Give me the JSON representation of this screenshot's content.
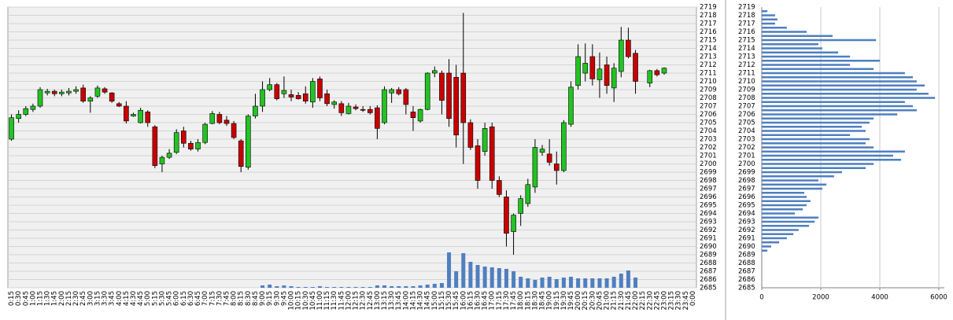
{
  "chart_data": [
    {
      "type": "candlestick",
      "categories": [
        "0:15",
        "0:30",
        "0:45",
        "1:00",
        "1:15",
        "1:30",
        "1:45",
        "2:00",
        "2:15",
        "2:30",
        "2:45",
        "3:00",
        "3:15",
        "3:30",
        "3:45",
        "4:00",
        "4:15",
        "4:30",
        "4:45",
        "5:00",
        "5:15",
        "5:30",
        "5:45",
        "6:00",
        "6:15",
        "6:30",
        "6:45",
        "7:00",
        "7:15",
        "7:30",
        "7:45",
        "8:00",
        "8:15",
        "8:30",
        "8:45",
        "9:00",
        "9:15",
        "9:30",
        "9:45",
        "10:00",
        "10:15",
        "10:30",
        "10:45",
        "11:00",
        "11:15",
        "11:30",
        "11:45",
        "12:00",
        "12:15",
        "12:30",
        "12:45",
        "13:00",
        "13:15",
        "13:30",
        "13:45",
        "14:00",
        "14:15",
        "14:30",
        "14:45",
        "15:00",
        "15:15",
        "15:30",
        "15:45",
        "16:00",
        "16:15",
        "16:30",
        "16:45",
        "17:00",
        "17:15",
        "17:30",
        "17:45",
        "18:00",
        "18:15",
        "18:30",
        "18:45",
        "19:00",
        "19:15",
        "19:30",
        "19:45",
        "20:00",
        "20:15",
        "20:30",
        "20:45",
        "21:00",
        "21:15",
        "21:30",
        "21:45",
        "22:00",
        "22:15",
        "22:30",
        "22:45",
        "23:00",
        "23:15",
        "23:30",
        "23:45",
        "0:00"
      ],
      "open": [
        2703,
        2705.5,
        2706,
        2706.6,
        2707,
        2708.6,
        2708.8,
        2708.5,
        2708.6,
        2708.8,
        2709.2,
        2707.6,
        2708.2,
        2709.1,
        2708.6,
        2707.3,
        2707,
        2705.8,
        2705,
        2706.3,
        2704.5,
        2700,
        2700.8,
        2701.4,
        2704,
        2702.5,
        2701.8,
        2702.6,
        2704.9,
        2706,
        2705.3,
        2704.9,
        2702.8,
        2699.6,
        2705.8,
        2707,
        2709,
        2709.6,
        2708.5,
        2708.4,
        2708.3,
        2708.5,
        2707.5,
        2710.3,
        2708.5,
        2707.2,
        2707.3,
        2706.1,
        2706.9,
        2706.6,
        2706.6,
        2706.8,
        2705,
        2708.6,
        2709,
        2709,
        2706.3,
        2705.2,
        2706.6,
        2711,
        2711,
        2711,
        2710.5,
        2711,
        2705,
        2702.2,
        2701.5,
        2704.5,
        2698,
        2696,
        2691.8,
        2694,
        2695.2,
        2697.2,
        2701.4,
        2701.2,
        2700,
        2699.2,
        2704.8,
        2709.5,
        2711,
        2713,
        2710.2,
        2712,
        2709.2,
        2711.2,
        2715,
        2713.4,
        null,
        2709.8,
        2711.3,
        2711,
        null,
        null,
        null,
        null
      ],
      "high": [
        2706,
        2706.5,
        2707,
        2707.3,
        2709.3,
        2709.1,
        2709,
        2709,
        2709.2,
        2709.4,
        2709.6,
        2708.2,
        2709.5,
        2709.3,
        2708.7,
        2707.5,
        2707.6,
        2706.2,
        2706.8,
        2706.5,
        2704.7,
        2701,
        2701.8,
        2704.2,
        2704.5,
        2702.8,
        2703,
        2705,
        2706.4,
        2706.3,
        2705.8,
        2705.2,
        2703,
        2706,
        2708.5,
        2710,
        2710.4,
        2709.8,
        2710.6,
        2709,
        2708.7,
        2709.4,
        2710.4,
        2710.6,
        2709,
        2707.7,
        2707.6,
        2707.4,
        2707.2,
        2707,
        2707,
        2707.1,
        2709.4,
        2709.2,
        2709.3,
        2709.2,
        2707,
        2706.7,
        2711.1,
        2711.8,
        2711.3,
        2712.7,
        2712,
        2718.3,
        2705.4,
        2703,
        2705,
        2705,
        2698.5,
        2696.8,
        2694,
        2696.2,
        2698.2,
        2703,
        2702.3,
        2703,
        2701.5,
        2705.3,
        2710,
        2714.5,
        2714.6,
        2714.5,
        2713.5,
        2713,
        2712.2,
        2716.6,
        2716.5,
        2713.8,
        null,
        2711.4,
        2711.5,
        2711.7,
        null,
        null,
        null,
        null
      ],
      "low": [
        2702.8,
        2705,
        2705.8,
        2706.3,
        2706.8,
        2708.3,
        2708.2,
        2708.2,
        2708.3,
        2708.5,
        2707.4,
        2706.2,
        2708,
        2708.5,
        2707.4,
        2706.9,
        2704.9,
        2705.7,
        2704.9,
        2704.5,
        2699.5,
        2699,
        2700.6,
        2701.2,
        2702,
        2701.6,
        2701.5,
        2702.4,
        2704.8,
        2704.8,
        2704.6,
        2703,
        2699,
        2699.3,
        2705.5,
        2706.3,
        2708.8,
        2707.7,
        2708,
        2707.6,
        2707.8,
        2707.3,
        2706.8,
        2707.6,
        2707,
        2706.7,
        2705.8,
        2706,
        2706.5,
        2706.3,
        2706,
        2703,
        2704.8,
        2707.4,
        2708.3,
        2706,
        2704,
        2705,
        2706.5,
        2710.5,
        2706,
        2704.5,
        2702,
        2700,
        2701.7,
        2697,
        2701,
        2697,
        2696,
        2690,
        2689,
        2692.5,
        2694.8,
        2696.5,
        2701,
        2699.8,
        2697.5,
        2699,
        2704.5,
        2709,
        2710,
        2709.5,
        2708,
        2708.5,
        2707.5,
        2710.5,
        2712.8,
        2708.5,
        null,
        2709.3,
        2710.6,
        2710.8,
        null,
        null,
        null,
        null
      ],
      "close": [
        2705.6,
        2706,
        2706.7,
        2707,
        2709,
        2708.8,
        2708.5,
        2708.7,
        2708.8,
        2709,
        2707.6,
        2708,
        2709.2,
        2708.7,
        2707.6,
        2707,
        2705.2,
        2706,
        2706.5,
        2705,
        2699.8,
        2700.8,
        2701.3,
        2703.8,
        2702.5,
        2701.8,
        2702.6,
        2704.8,
        2706.1,
        2705,
        2704.9,
        2703.2,
        2699.7,
        2705.8,
        2707,
        2709,
        2709.6,
        2707.9,
        2708.9,
        2708.1,
        2707.9,
        2707.6,
        2710,
        2708,
        2707.3,
        2707.5,
        2706.2,
        2707,
        2706.7,
        2706.5,
        2706.2,
        2704.3,
        2709,
        2709,
        2708.5,
        2707.2,
        2705.6,
        2706.6,
        2711,
        2711.3,
        2707.7,
        2705.5,
        2703.5,
        2705,
        2702,
        2698,
        2704.3,
        2698,
        2696.3,
        2691.6,
        2693.8,
        2695.8,
        2697.5,
        2702,
        2701.8,
        2700.2,
        2699.2,
        2705,
        2709.3,
        2713,
        2712.2,
        2710.3,
        2711.5,
        2709.5,
        2711.6,
        2715,
        2713,
        2710,
        null,
        2711.3,
        2710.8,
        2711.6,
        null,
        null,
        null,
        null
      ],
      "volume": [
        0,
        0,
        0,
        0,
        0,
        0,
        0,
        0,
        0,
        0,
        0,
        0,
        0,
        0,
        0,
        0,
        0,
        0,
        0,
        0,
        0,
        0,
        0,
        0,
        0,
        0,
        0,
        0,
        0,
        0,
        0,
        0,
        0,
        0,
        0,
        3,
        4,
        2,
        3,
        2,
        1,
        1,
        1,
        2,
        1,
        1,
        1,
        1,
        1,
        1,
        1,
        3,
        3,
        2,
        2,
        2,
        2,
        3,
        4,
        5,
        6,
        45,
        21,
        44,
        33,
        29,
        27,
        26,
        25,
        24,
        21,
        14,
        12,
        10,
        13,
        14,
        11,
        13,
        14,
        12,
        12,
        12,
        12,
        12,
        14,
        18,
        22,
        13,
        null,
        0,
        0,
        0,
        null,
        null,
        null,
        null
      ],
      "up_color": "#22c322",
      "down_color": "#c80000",
      "volume_color": "#4f7fbf",
      "ylim": [
        2685,
        2719
      ],
      "yticks": [
        2685,
        2686,
        2687,
        2688,
        2689,
        2690,
        2691,
        2692,
        2693,
        2694,
        2695,
        2696,
        2697,
        2698,
        2699,
        2700,
        2701,
        2702,
        2703,
        2704,
        2705,
        2706,
        2707,
        2708,
        2709,
        2710,
        2711,
        2712,
        2713,
        2714,
        2715,
        2716,
        2717,
        2718,
        2719
      ],
      "grid": true
    },
    {
      "type": "barh",
      "y": [
        2689.5,
        2690,
        2690.5,
        2691,
        2691.5,
        2692,
        2692.5,
        2693,
        2693.5,
        2694,
        2694.5,
        2695,
        2695.5,
        2696,
        2696.5,
        2697,
        2697.5,
        2698,
        2698.5,
        2699,
        2699.5,
        2700,
        2700.5,
        2701,
        2701.5,
        2702,
        2702.5,
        2703,
        2703.5,
        2704,
        2704.5,
        2705,
        2705.5,
        2706,
        2706.5,
        2707,
        2707.5,
        2708,
        2708.5,
        2709,
        2709.5,
        2710,
        2710.5,
        2711,
        2711.5,
        2712,
        2712.5,
        2713,
        2713.5,
        2714,
        2714.5,
        2715,
        2715.5,
        2716,
        2716.5,
        2717,
        2717.5,
        2718,
        2718.5
      ],
      "values": [
        190,
        320,
        590,
        850,
        1070,
        1250,
        1600,
        1790,
        1920,
        1120,
        1390,
        1520,
        1650,
        1520,
        1440,
        2050,
        2190,
        1920,
        2450,
        2720,
        3520,
        3790,
        4720,
        4450,
        4850,
        3790,
        3520,
        3650,
        2990,
        3520,
        3390,
        3650,
        3790,
        4590,
        5250,
        5120,
        4850,
        5870,
        5650,
        5250,
        5520,
        5250,
        5120,
        4850,
        3790,
        2990,
        4000,
        2990,
        2590,
        2050,
        1920,
        3870,
        2400,
        1520,
        850,
        450,
        530,
        450,
        190
      ],
      "color": "#4f7fbf",
      "ylim": [
        2685,
        2719
      ],
      "yticks": [
        2685,
        2686,
        2687,
        2688,
        2689,
        2690,
        2691,
        2692,
        2693,
        2694,
        2695,
        2696,
        2697,
        2698,
        2699,
        2700,
        2701,
        2702,
        2703,
        2704,
        2705,
        2706,
        2707,
        2708,
        2709,
        2710,
        2711,
        2712,
        2713,
        2714,
        2715,
        2716,
        2717,
        2718,
        2719
      ],
      "xlim": [
        0,
        6000
      ],
      "xticks": [
        0,
        2000,
        4000,
        6000
      ],
      "grid": true
    }
  ]
}
